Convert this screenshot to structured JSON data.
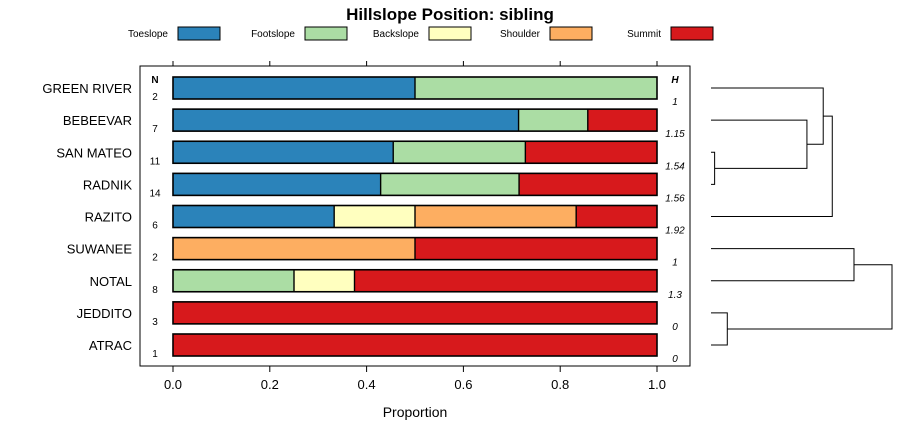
{
  "chart_data": {
    "type": "bar",
    "orientation": "horizontal",
    "stacked": true,
    "title": "Hillslope Position: sibling",
    "xlabel": "Proportion",
    "ylabel": "",
    "xlim": [
      0,
      1
    ],
    "x_ticks": [
      "0.0",
      "0.2",
      "0.4",
      "0.6",
      "0.8",
      "1.0"
    ],
    "n_header": "N",
    "h_header": "H",
    "legend_position": "top",
    "categories": [
      "GREEN RIVER",
      "BEBEEVAR",
      "SAN MATEO",
      "RADNIK",
      "RAZITO",
      "SUWANEE",
      "NOTAL",
      "JEDDITO",
      "ATRAC"
    ],
    "n": [
      "2",
      "7",
      "11",
      "14",
      "6",
      "2",
      "8",
      "3",
      "1"
    ],
    "h": [
      "1",
      "1.15",
      "1.54",
      "1.56",
      "1.92",
      "1",
      "1.3",
      "0",
      "0"
    ],
    "series": [
      {
        "name": "Toeslope",
        "color": "#2b83ba",
        "values": [
          0.5,
          0.714,
          0.455,
          0.429,
          0.333,
          0,
          0,
          0,
          0
        ]
      },
      {
        "name": "Footslope",
        "color": "#abdda4",
        "values": [
          0.5,
          0.143,
          0.273,
          0.286,
          0,
          0,
          0.25,
          0,
          0
        ]
      },
      {
        "name": "Backslope",
        "color": "#ffffbf",
        "values": [
          0,
          0,
          0,
          0,
          0.167,
          0,
          0.125,
          0,
          0
        ]
      },
      {
        "name": "Shoulder",
        "color": "#fdae61",
        "values": [
          0,
          0,
          0,
          0,
          0.333,
          0.5,
          0,
          0,
          0
        ]
      },
      {
        "name": "Summit",
        "color": "#d7191c",
        "values": [
          0,
          0.143,
          0.273,
          0.286,
          0.167,
          0.5,
          0.625,
          1,
          1
        ]
      }
    ],
    "dendrogram": {
      "merges": [
        [
          7,
          8,
          0.09
        ],
        [
          2,
          3,
          0.02
        ],
        [
          1,
          10,
          0.53
        ],
        [
          5,
          6,
          0.79
        ],
        [
          0,
          11,
          0.62
        ],
        [
          13,
          4,
          0.67
        ],
        [
          12,
          9,
          1
        ]
      ]
    }
  }
}
